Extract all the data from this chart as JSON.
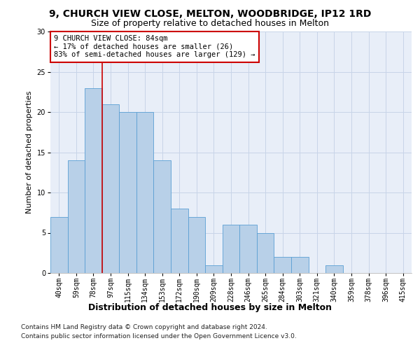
{
  "title": "9, CHURCH VIEW CLOSE, MELTON, WOODBRIDGE, IP12 1RD",
  "subtitle": "Size of property relative to detached houses in Melton",
  "xlabel": "Distribution of detached houses by size in Melton",
  "ylabel": "Number of detached properties",
  "categories": [
    "40sqm",
    "59sqm",
    "78sqm",
    "97sqm",
    "115sqm",
    "134sqm",
    "153sqm",
    "172sqm",
    "190sqm",
    "209sqm",
    "228sqm",
    "246sqm",
    "265sqm",
    "284sqm",
    "303sqm",
    "321sqm",
    "340sqm",
    "359sqm",
    "378sqm",
    "396sqm",
    "415sqm"
  ],
  "values": [
    7,
    14,
    23,
    21,
    20,
    20,
    14,
    8,
    7,
    1,
    6,
    6,
    5,
    2,
    2,
    0,
    1,
    0,
    0,
    0,
    0
  ],
  "bar_color": "#b8d0e8",
  "bar_edge_color": "#5a9fd4",
  "property_line_color": "#cc0000",
  "annotation_line1": "9 CHURCH VIEW CLOSE: 84sqm",
  "annotation_line2": "← 17% of detached houses are smaller (26)",
  "annotation_line3": "83% of semi-detached houses are larger (129) →",
  "annotation_box_edge_color": "#cc0000",
  "ylim": [
    0,
    30
  ],
  "yticks": [
    0,
    5,
    10,
    15,
    20,
    25,
    30
  ],
  "grid_color": "#c8d4e8",
  "background_color": "#e8eef8",
  "footer_line1": "Contains HM Land Registry data © Crown copyright and database right 2024.",
  "footer_line2": "Contains public sector information licensed under the Open Government Licence v3.0.",
  "title_fontsize": 10,
  "subtitle_fontsize": 9,
  "xlabel_fontsize": 9,
  "ylabel_fontsize": 8,
  "tick_fontsize": 7,
  "footer_fontsize": 6.5,
  "annotation_fontsize": 7.5
}
